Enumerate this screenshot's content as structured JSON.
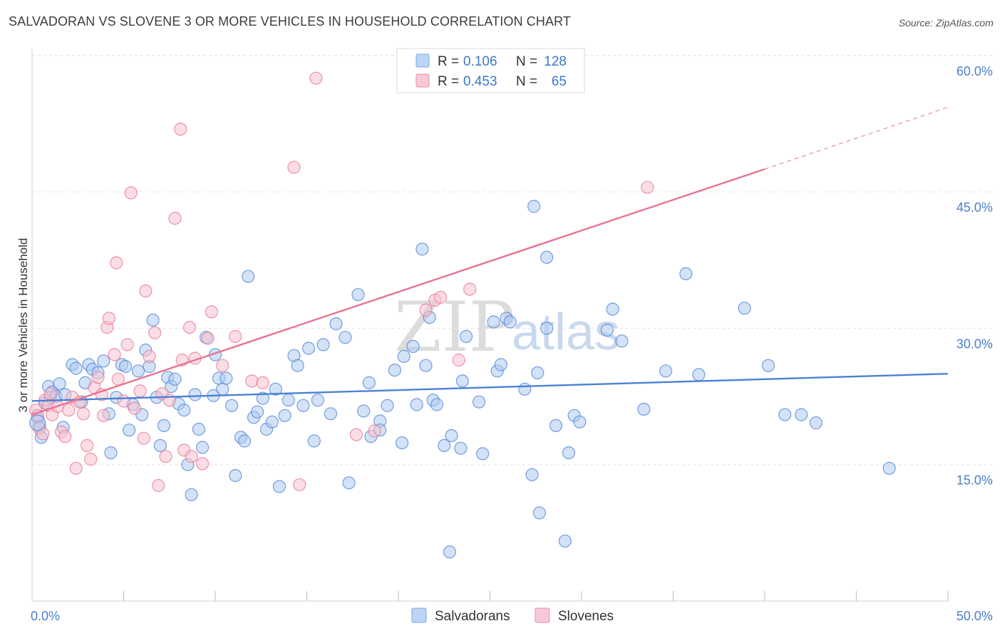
{
  "title": "SALVADORAN VS SLOVENE 3 OR MORE VEHICLES IN HOUSEHOLD CORRELATION CHART",
  "source": "Source: ZipAtlas.com",
  "watermark": {
    "zip": "ZIP",
    "atlas": "atlas"
  },
  "legend": {
    "r_label": "R =",
    "n_label": "N =",
    "rows": [
      {
        "name": "Salvadorans",
        "r": "0.106",
        "n": "128",
        "color": "#7aaae8",
        "fill": "#bcd4f5"
      },
      {
        "name": "Slovenes",
        "r": "0.453",
        "n": "65",
        "color": "#ee8fab",
        "fill": "#f8c9d6"
      }
    ]
  },
  "chart_data": {
    "type": "scatter",
    "xlabel": "",
    "ylabel": "3 or more Vehicles in Household",
    "xlim": [
      0,
      50
    ],
    "ylim": [
      0,
      60
    ],
    "x_tick_labels": [
      "0.0%",
      "50.0%"
    ],
    "y_ticks": [
      15,
      30,
      45,
      60
    ],
    "y_tick_labels": [
      "15.0%",
      "30.0%",
      "45.0%",
      "60.0%"
    ],
    "series": [
      {
        "name": "Salvadorans",
        "color": "#4a82d4",
        "fill": "#aecaf1",
        "trend": {
          "x0": 0,
          "y0": 22.0,
          "x1": 50,
          "y1": 25.0
        },
        "points": [
          [
            0.3,
            20.2
          ],
          [
            0.4,
            19.2
          ],
          [
            0.5,
            18.0
          ],
          [
            0.7,
            21.8
          ],
          [
            0.9,
            23.6
          ],
          [
            1.0,
            22.4
          ],
          [
            1.1,
            23.0
          ],
          [
            1.3,
            22.5
          ],
          [
            1.5,
            23.9
          ],
          [
            1.7,
            19.1
          ],
          [
            1.8,
            22.7
          ],
          [
            2.2,
            26.0
          ],
          [
            2.4,
            25.6
          ],
          [
            2.7,
            21.9
          ],
          [
            2.9,
            24.0
          ],
          [
            3.1,
            26.0
          ],
          [
            3.3,
            25.5
          ],
          [
            3.6,
            25.1
          ],
          [
            3.9,
            26.4
          ],
          [
            4.2,
            20.6
          ],
          [
            4.3,
            16.3
          ],
          [
            4.6,
            22.4
          ],
          [
            4.9,
            26.0
          ],
          [
            5.1,
            25.8
          ],
          [
            5.3,
            18.8
          ],
          [
            5.5,
            21.6
          ],
          [
            5.8,
            25.3
          ],
          [
            6.0,
            20.5
          ],
          [
            6.2,
            27.6
          ],
          [
            6.4,
            25.8
          ],
          [
            6.6,
            30.9
          ],
          [
            6.8,
            22.4
          ],
          [
            7.0,
            17.1
          ],
          [
            7.2,
            19.3
          ],
          [
            7.4,
            24.6
          ],
          [
            7.6,
            23.6
          ],
          [
            7.8,
            24.4
          ],
          [
            8.0,
            21.7
          ],
          [
            8.3,
            21.0
          ],
          [
            8.5,
            15.0
          ],
          [
            8.7,
            11.7
          ],
          [
            8.9,
            22.7
          ],
          [
            9.1,
            18.9
          ],
          [
            9.3,
            16.9
          ],
          [
            9.5,
            29.0
          ],
          [
            9.9,
            22.6
          ],
          [
            10.0,
            27.1
          ],
          [
            10.2,
            24.5
          ],
          [
            10.4,
            23.3
          ],
          [
            10.6,
            24.5
          ],
          [
            10.9,
            21.5
          ],
          [
            11.1,
            13.8
          ],
          [
            11.4,
            18.0
          ],
          [
            11.6,
            17.6
          ],
          [
            11.8,
            35.7
          ],
          [
            12.1,
            20.2
          ],
          [
            12.3,
            20.8
          ],
          [
            12.6,
            22.3
          ],
          [
            12.8,
            18.9
          ],
          [
            13.1,
            19.7
          ],
          [
            13.3,
            23.3
          ],
          [
            13.5,
            12.6
          ],
          [
            13.8,
            20.4
          ],
          [
            14.0,
            22.1
          ],
          [
            14.3,
            27.0
          ],
          [
            14.5,
            25.9
          ],
          [
            14.8,
            21.5
          ],
          [
            15.1,
            27.8
          ],
          [
            15.4,
            17.6
          ],
          [
            15.6,
            22.1
          ],
          [
            15.9,
            28.2
          ],
          [
            16.3,
            20.6
          ],
          [
            16.6,
            30.5
          ],
          [
            17.1,
            29.0
          ],
          [
            17.3,
            13.0
          ],
          [
            17.8,
            33.7
          ],
          [
            18.1,
            20.9
          ],
          [
            18.4,
            24.0
          ],
          [
            18.5,
            18.1
          ],
          [
            19.0,
            19.8
          ],
          [
            19.4,
            21.5
          ],
          [
            19.0,
            18.8
          ],
          [
            19.8,
            25.4
          ],
          [
            20.2,
            17.4
          ],
          [
            20.3,
            26.9
          ],
          [
            20.8,
            28.0
          ],
          [
            21.0,
            21.6
          ],
          [
            21.3,
            38.7
          ],
          [
            21.5,
            25.9
          ],
          [
            21.7,
            31.2
          ],
          [
            21.9,
            22.1
          ],
          [
            22.1,
            21.6
          ],
          [
            22.5,
            17.1
          ],
          [
            22.8,
            5.4
          ],
          [
            22.9,
            18.2
          ],
          [
            23.4,
            16.8
          ],
          [
            23.5,
            24.2
          ],
          [
            23.7,
            29.1
          ],
          [
            24.4,
            21.9
          ],
          [
            24.6,
            16.2
          ],
          [
            25.2,
            30.7
          ],
          [
            25.4,
            25.3
          ],
          [
            25.6,
            26.0
          ],
          [
            25.9,
            31.1
          ],
          [
            26.1,
            30.7
          ],
          [
            26.9,
            23.3
          ],
          [
            27.3,
            13.9
          ],
          [
            27.4,
            43.4
          ],
          [
            27.6,
            25.1
          ],
          [
            27.7,
            9.7
          ],
          [
            28.1,
            30.0
          ],
          [
            28.1,
            37.8
          ],
          [
            28.6,
            19.3
          ],
          [
            29.1,
            6.6
          ],
          [
            29.3,
            16.3
          ],
          [
            29.6,
            20.4
          ],
          [
            29.9,
            19.7
          ],
          [
            31.4,
            29.8
          ],
          [
            31.7,
            32.1
          ],
          [
            32.2,
            28.6
          ],
          [
            33.4,
            21.1
          ],
          [
            34.6,
            25.3
          ],
          [
            35.7,
            36.0
          ],
          [
            36.4,
            24.9
          ],
          [
            38.9,
            32.2
          ],
          [
            40.2,
            25.9
          ],
          [
            41.1,
            20.5
          ],
          [
            42.0,
            20.5
          ],
          [
            42.8,
            19.6
          ],
          [
            46.8,
            14.6
          ]
        ]
      },
      {
        "name": "Slovenes",
        "color": "#e8738f",
        "fill": "#f7c2d0",
        "trend": {
          "x0": 0,
          "y0": 20.5,
          "x1": 40,
          "y1": 47.5,
          "dash_x1": 50,
          "dash_y1": 54.3
        },
        "points": [
          [
            0.2,
            21.0
          ],
          [
            0.3,
            20.4
          ],
          [
            0.4,
            19.0
          ],
          [
            0.6,
            18.4
          ],
          [
            0.7,
            22.1
          ],
          [
            0.9,
            21.5
          ],
          [
            1.0,
            22.8
          ],
          [
            1.1,
            20.5
          ],
          [
            1.4,
            21.4
          ],
          [
            1.6,
            18.6
          ],
          [
            1.8,
            18.1
          ],
          [
            2.0,
            21.0
          ],
          [
            2.2,
            22.4
          ],
          [
            2.4,
            14.6
          ],
          [
            2.6,
            21.9
          ],
          [
            2.8,
            20.6
          ],
          [
            3.0,
            17.1
          ],
          [
            3.2,
            15.6
          ],
          [
            3.4,
            23.5
          ],
          [
            3.6,
            24.6
          ],
          [
            3.8,
            22.7
          ],
          [
            3.9,
            20.4
          ],
          [
            4.1,
            30.1
          ],
          [
            4.2,
            31.1
          ],
          [
            4.5,
            27.1
          ],
          [
            4.6,
            37.2
          ],
          [
            4.7,
            24.4
          ],
          [
            5.0,
            22.0
          ],
          [
            5.2,
            28.2
          ],
          [
            5.4,
            44.9
          ],
          [
            5.6,
            21.2
          ],
          [
            5.9,
            23.1
          ],
          [
            6.1,
            17.9
          ],
          [
            6.2,
            34.1
          ],
          [
            6.4,
            26.9
          ],
          [
            6.7,
            29.5
          ],
          [
            6.9,
            12.7
          ],
          [
            7.1,
            22.8
          ],
          [
            7.3,
            15.9
          ],
          [
            7.5,
            22.1
          ],
          [
            7.8,
            42.1
          ],
          [
            8.1,
            51.9
          ],
          [
            8.2,
            26.5
          ],
          [
            8.3,
            16.6
          ],
          [
            8.6,
            30.1
          ],
          [
            8.7,
            15.9
          ],
          [
            8.9,
            26.7
          ],
          [
            9.3,
            15.1
          ],
          [
            9.6,
            28.9
          ],
          [
            9.8,
            31.8
          ],
          [
            10.4,
            25.9
          ],
          [
            11.1,
            29.1
          ],
          [
            12.0,
            24.2
          ],
          [
            12.6,
            24.0
          ],
          [
            14.3,
            47.7
          ],
          [
            14.6,
            12.8
          ],
          [
            15.5,
            57.5
          ],
          [
            17.7,
            18.3
          ],
          [
            18.7,
            18.7
          ],
          [
            21.5,
            32.0
          ],
          [
            22.0,
            33.1
          ],
          [
            22.3,
            33.4
          ],
          [
            23.3,
            26.5
          ],
          [
            23.9,
            34.3
          ],
          [
            33.6,
            45.5
          ]
        ]
      }
    ]
  }
}
